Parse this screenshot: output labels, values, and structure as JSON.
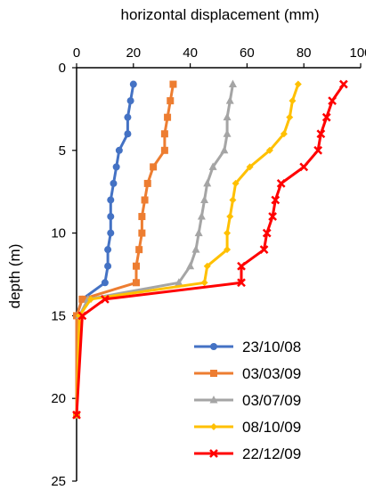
{
  "chart_data": {
    "type": "line",
    "xlabel": "horizontal displacement (mm)",
    "ylabel": "depth (m)",
    "xlim": [
      0,
      100
    ],
    "ylim": [
      0,
      25
    ],
    "y_inverted": true,
    "x_axis_position": "top",
    "xticks": [
      0,
      20,
      40,
      60,
      80,
      100
    ],
    "yticks": [
      0,
      5,
      10,
      15,
      20,
      25
    ],
    "grid": false,
    "legend_position": "bottom-right",
    "series": [
      {
        "name": "23/10/08",
        "color": "#4472C4",
        "marker": "circle",
        "points": [
          [
            20,
            1
          ],
          [
            19,
            2
          ],
          [
            18,
            3
          ],
          [
            18,
            4
          ],
          [
            15,
            5
          ],
          [
            14,
            6
          ],
          [
            13,
            7
          ],
          [
            12,
            8
          ],
          [
            12,
            9
          ],
          [
            12,
            10
          ],
          [
            11,
            11
          ],
          [
            11,
            12
          ],
          [
            10,
            13
          ],
          [
            2,
            14
          ],
          [
            0,
            15
          ],
          [
            0,
            21
          ]
        ]
      },
      {
        "name": "03/03/09",
        "color": "#ED7D31",
        "marker": "square",
        "points": [
          [
            34,
            1
          ],
          [
            33,
            2
          ],
          [
            32,
            3
          ],
          [
            31,
            4
          ],
          [
            31,
            5
          ],
          [
            27,
            6
          ],
          [
            25,
            7
          ],
          [
            24,
            8
          ],
          [
            23,
            9
          ],
          [
            23,
            10
          ],
          [
            22,
            11
          ],
          [
            21,
            12
          ],
          [
            21,
            13
          ],
          [
            2,
            14
          ],
          [
            0,
            15
          ],
          [
            0,
            21
          ]
        ]
      },
      {
        "name": "03/07/09",
        "color": "#A5A5A5",
        "marker": "triangle",
        "points": [
          [
            55,
            1
          ],
          [
            54,
            2
          ],
          [
            53,
            3
          ],
          [
            53,
            4
          ],
          [
            52,
            5
          ],
          [
            48,
            6
          ],
          [
            46,
            7
          ],
          [
            45,
            8
          ],
          [
            44,
            9
          ],
          [
            43,
            10
          ],
          [
            42,
            11
          ],
          [
            40,
            12
          ],
          [
            36,
            13
          ],
          [
            4,
            14
          ],
          [
            1,
            15
          ],
          [
            0,
            21
          ]
        ]
      },
      {
        "name": "08/10/09",
        "color": "#FFC000",
        "marker": "diamond",
        "points": [
          [
            78,
            1
          ],
          [
            76,
            2
          ],
          [
            75,
            3
          ],
          [
            73,
            4
          ],
          [
            68,
            5
          ],
          [
            61,
            6
          ],
          [
            56,
            7
          ],
          [
            55,
            8
          ],
          [
            54,
            9
          ],
          [
            53,
            10
          ],
          [
            53,
            11
          ],
          [
            46,
            12
          ],
          [
            45,
            13
          ],
          [
            5,
            14
          ],
          [
            1,
            15
          ],
          [
            0,
            21
          ]
        ]
      },
      {
        "name": "22/12/09",
        "color": "#FF0000",
        "marker": "x",
        "points": [
          [
            94,
            1
          ],
          [
            90,
            2
          ],
          [
            88,
            3
          ],
          [
            86,
            4
          ],
          [
            85,
            5
          ],
          [
            80,
            6
          ],
          [
            72,
            7
          ],
          [
            70,
            8
          ],
          [
            69,
            9
          ],
          [
            67,
            10
          ],
          [
            66,
            11
          ],
          [
            58,
            12
          ],
          [
            58,
            13
          ],
          [
            10,
            14
          ],
          [
            2,
            15
          ],
          [
            0,
            21
          ]
        ]
      }
    ]
  }
}
